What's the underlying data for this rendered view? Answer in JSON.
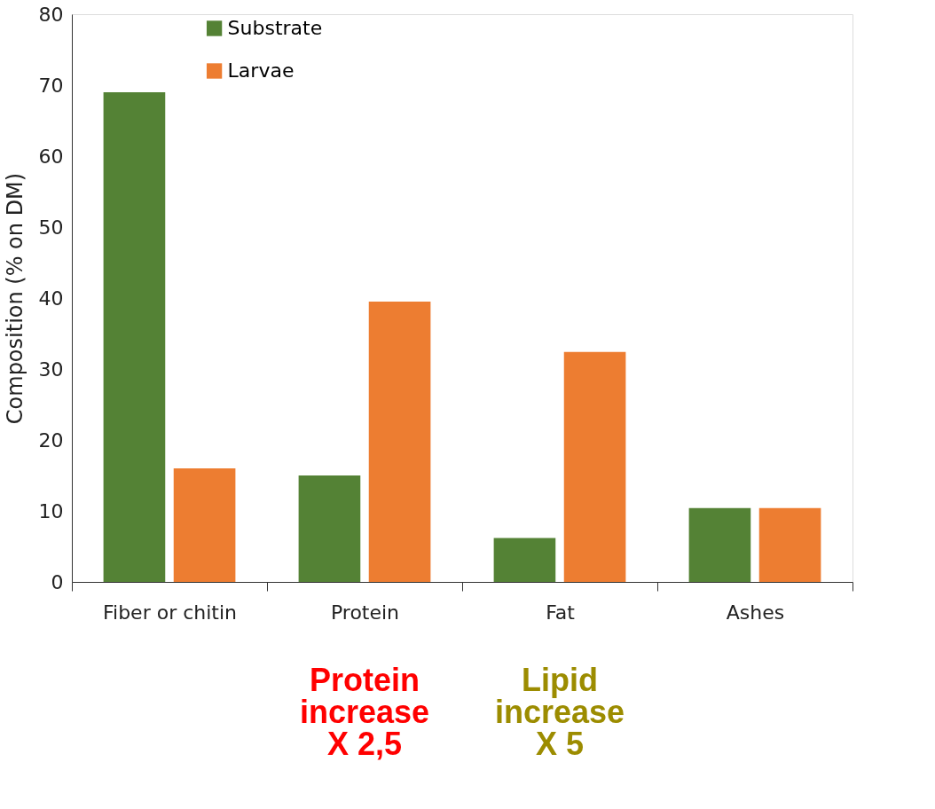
{
  "chart_data": {
    "type": "bar",
    "ylabel": "Composition (% on DM)",
    "categories": [
      "Fiber or chitin",
      "Protein",
      "Fat",
      "Ashes"
    ],
    "series": [
      {
        "name": "Substrate",
        "color": "#548235",
        "values": [
          69,
          15,
          6.2,
          10.4
        ]
      },
      {
        "name": "Larvae",
        "color": "#ed7d31",
        "values": [
          16,
          39.5,
          32.4,
          10.4
        ]
      }
    ],
    "ylim": [
      0,
      80
    ],
    "yticks": [
      0,
      10,
      20,
      30,
      40,
      50,
      60,
      70,
      80
    ],
    "grid": false,
    "legend": "top left",
    "annotations": [
      "Protein\nincrease\nX 2,5",
      "Lipid\nincrease\nX 5"
    ]
  }
}
